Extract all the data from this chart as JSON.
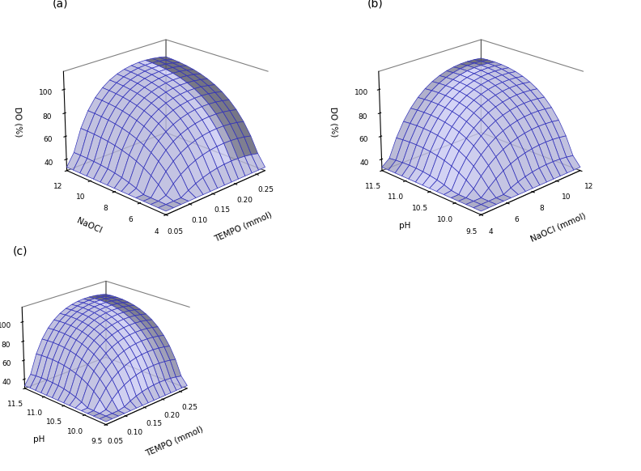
{
  "panel_labels": [
    "(a)",
    "(b)",
    "(c)"
  ],
  "surface_color": "#3333bb",
  "surface_facecolor": "#d0d0f8",
  "surface_alpha": 0.85,
  "surface_linewidth": 0.5,
  "zlabel": "DO (%)",
  "zlim": [
    30,
    115
  ],
  "zticks": [
    40,
    60,
    80,
    100
  ],
  "plot_a": {
    "xlabel": "TEMPO (mmol)",
    "ylabel": "NaOCl",
    "x_range": [
      0.05,
      0.27
    ],
    "y_range": [
      4,
      12
    ],
    "x_ticks": [
      0.05,
      0.1,
      0.15,
      0.2,
      0.25
    ],
    "y_ticks": [
      4,
      6,
      8,
      10,
      12
    ],
    "elev": 22,
    "azim": -135
  },
  "plot_b": {
    "xlabel": "NaOCl (mmol)",
    "ylabel": "pH",
    "x_range": [
      4,
      12
    ],
    "y_range": [
      9.5,
      11.5
    ],
    "x_ticks": [
      4,
      6,
      8,
      10,
      12
    ],
    "y_ticks": [
      9.5,
      10.0,
      10.5,
      11.0,
      11.5
    ],
    "elev": 22,
    "azim": -135
  },
  "plot_c": {
    "xlabel": "TEMPO (mmol)",
    "ylabel": "pH",
    "x_range": [
      0.05,
      0.27
    ],
    "y_range": [
      9.5,
      11.5
    ],
    "x_ticks": [
      0.05,
      0.1,
      0.15,
      0.2,
      0.25
    ],
    "y_ticks": [
      9.5,
      10.0,
      10.5,
      11.0,
      11.5
    ],
    "elev": 22,
    "azim": -135
  },
  "label_fontsize": 7.5,
  "tick_fontsize": 6.5,
  "panel_fontsize": 10,
  "n_grid": 15
}
